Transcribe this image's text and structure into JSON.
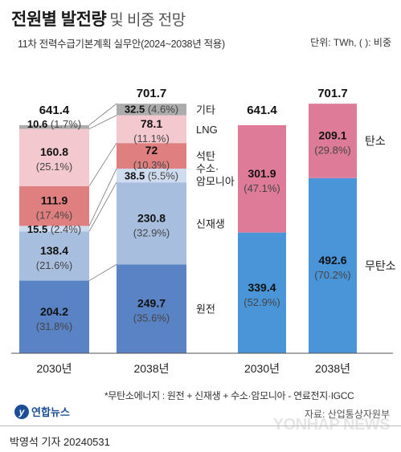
{
  "title": "전원별 발전량",
  "title_suffix": "및 비중 전망",
  "subtitle": "11차 전력수급기본계획 실무안(2024~2038년 적용)",
  "unit": "단위: TWh, ( ): 비중",
  "footnote": "*무탄소에너지 : 원전 + 신재생 + 수소·암모니아 - 연료전지·IGCC",
  "source": "자료: 산업통상자원부",
  "logo_text": "연합뉴스",
  "credit": "박영석 기자  20240531",
  "watermark": "YONHAP NEWS",
  "colors": {
    "nuclear": "#5a83c6",
    "renewable": "#a7bedf",
    "hydrogen": "#cfdbee",
    "coal": "#e07f7f",
    "lng": "#f3c9cf",
    "other": "#acacac",
    "carbon_free": "#4a95d8",
    "carbon": "#de7b98"
  },
  "chart_data": [
    {
      "type": "bar",
      "stacked": true,
      "categories": [
        "2030년",
        "2038년"
      ],
      "totals": [
        641.4,
        701.7
      ],
      "series": [
        {
          "name": "원전",
          "values": [
            204.2,
            249.7
          ],
          "shares": [
            "31.8%",
            "35.6%"
          ],
          "color_key": "nuclear"
        },
        {
          "name": "신재생",
          "values": [
            138.4,
            230.8
          ],
          "shares": [
            "21.6%",
            "32.9%"
          ],
          "color_key": "renewable"
        },
        {
          "name": "수소·암모니아",
          "values": [
            15.5,
            38.5
          ],
          "shares": [
            "2.4%",
            "5.5%"
          ],
          "color_key": "hydrogen"
        },
        {
          "name": "석탄",
          "values": [
            111.9,
            72.0
          ],
          "shares": [
            "17.4%",
            "10.3%"
          ],
          "color_key": "coal"
        },
        {
          "name": "LNG",
          "values": [
            160.8,
            78.1
          ],
          "shares": [
            "25.1%",
            "11.1%"
          ],
          "color_key": "lng"
        },
        {
          "name": "기타",
          "values": [
            10.6,
            32.5
          ],
          "shares": [
            "1.7%",
            "4.6%"
          ],
          "color_key": "other"
        }
      ]
    },
    {
      "type": "bar",
      "stacked": true,
      "categories": [
        "2030년",
        "2038년"
      ],
      "totals": [
        641.4,
        701.7
      ],
      "series": [
        {
          "name": "무탄소",
          "values": [
            339.4,
            492.6
          ],
          "shares": [
            "52.9%",
            "70.2%"
          ],
          "color_key": "carbon_free"
        },
        {
          "name": "탄소",
          "values": [
            301.9,
            209.1
          ],
          "shares": [
            "47.1%",
            "29.8%"
          ],
          "color_key": "carbon"
        }
      ]
    }
  ]
}
